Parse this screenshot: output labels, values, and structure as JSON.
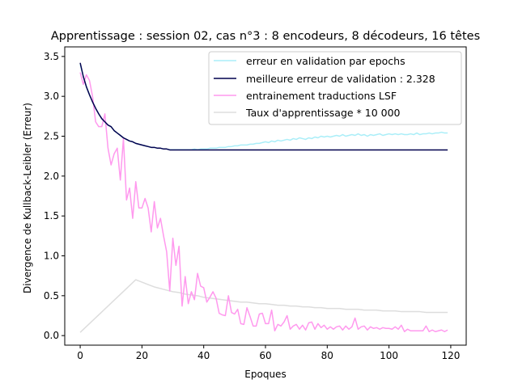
{
  "chart_data": {
    "type": "line",
    "title": "Apprentissage : session 02, cas n°3 : 8 encodeurs, 8 décodeurs, 16 têtes",
    "xlabel": "Epoques",
    "ylabel": "Divergence de Kullback-Leibler (Erreur)",
    "xlim": [
      -5,
      125
    ],
    "ylim": [
      -0.12,
      3.62
    ],
    "xticks": [
      0,
      20,
      40,
      60,
      80,
      100,
      120
    ],
    "yticks": [
      0.0,
      0.5,
      1.0,
      1.5,
      2.0,
      2.5,
      3.0,
      3.5
    ],
    "xtick_labels": [
      "0",
      "20",
      "40",
      "60",
      "80",
      "100",
      "120"
    ],
    "ytick_labels": [
      "0.0",
      "0.5",
      "1.0",
      "1.5",
      "2.0",
      "2.5",
      "3.0",
      "3.5"
    ],
    "legend_position": "top-right",
    "grid": false,
    "series": [
      {
        "name": "erreur en validation par epochs",
        "color": "#aaeef8",
        "x": [
          0,
          1,
          2,
          3,
          4,
          5,
          6,
          7,
          8,
          9,
          10,
          11,
          12,
          13,
          14,
          15,
          16,
          17,
          18,
          19,
          20,
          21,
          22,
          23,
          24,
          25,
          26,
          27,
          28,
          29,
          30,
          31,
          32,
          33,
          34,
          35,
          36,
          37,
          38,
          39,
          40,
          41,
          42,
          43,
          44,
          45,
          46,
          47,
          48,
          49,
          50,
          51,
          52,
          53,
          54,
          55,
          56,
          57,
          58,
          59,
          60,
          61,
          62,
          63,
          64,
          65,
          66,
          67,
          68,
          69,
          70,
          71,
          72,
          73,
          74,
          75,
          76,
          77,
          78,
          79,
          80,
          81,
          82,
          83,
          84,
          85,
          86,
          87,
          88,
          89,
          90,
          91,
          92,
          93,
          94,
          95,
          96,
          97,
          98,
          99,
          100,
          101,
          102,
          103,
          104,
          105,
          106,
          107,
          108,
          109,
          110,
          111,
          112,
          113,
          114,
          115,
          116,
          117,
          118,
          119
        ],
        "values": [
          3.4,
          3.25,
          3.12,
          3.02,
          2.93,
          2.85,
          2.78,
          2.72,
          2.68,
          2.64,
          2.62,
          2.57,
          2.54,
          2.51,
          2.48,
          2.46,
          2.44,
          2.43,
          2.41,
          2.4,
          2.39,
          2.38,
          2.37,
          2.36,
          2.36,
          2.35,
          2.35,
          2.34,
          2.34,
          2.33,
          2.33,
          2.33,
          2.33,
          2.33,
          2.33,
          2.33,
          2.33,
          2.34,
          2.33,
          2.34,
          2.34,
          2.34,
          2.35,
          2.35,
          2.35,
          2.36,
          2.36,
          2.36,
          2.37,
          2.37,
          2.38,
          2.38,
          2.39,
          2.39,
          2.39,
          2.4,
          2.4,
          2.41,
          2.41,
          2.42,
          2.43,
          2.42,
          2.44,
          2.43,
          2.45,
          2.44,
          2.45,
          2.46,
          2.45,
          2.47,
          2.46,
          2.48,
          2.47,
          2.46,
          2.48,
          2.47,
          2.49,
          2.48,
          2.5,
          2.49,
          2.5,
          2.49,
          2.5,
          2.51,
          2.5,
          2.52,
          2.5,
          2.51,
          2.52,
          2.51,
          2.53,
          2.51,
          2.52,
          2.5,
          2.52,
          2.51,
          2.52,
          2.53,
          2.51,
          2.52,
          2.53,
          2.52,
          2.53,
          2.52,
          2.53,
          2.52,
          2.52,
          2.53,
          2.52,
          2.54,
          2.52,
          2.53,
          2.53,
          2.54,
          2.53,
          2.54,
          2.54,
          2.55,
          2.54,
          2.54
        ]
      },
      {
        "name": "meilleure erreur de validation : 2.328",
        "color": "#00004d",
        "x": [
          0,
          1,
          2,
          3,
          4,
          5,
          6,
          7,
          8,
          9,
          10,
          11,
          12,
          13,
          14,
          15,
          16,
          17,
          18,
          19,
          20,
          21,
          22,
          23,
          24,
          25,
          26,
          27,
          28,
          29,
          119
        ],
        "values": [
          3.42,
          3.25,
          3.12,
          3.02,
          2.93,
          2.85,
          2.78,
          2.72,
          2.68,
          2.64,
          2.62,
          2.57,
          2.54,
          2.51,
          2.48,
          2.46,
          2.44,
          2.43,
          2.41,
          2.4,
          2.39,
          2.38,
          2.37,
          2.36,
          2.36,
          2.35,
          2.35,
          2.34,
          2.34,
          2.328,
          2.328
        ]
      },
      {
        "name": "entrainement traductions LSF",
        "color": "#ff99ee",
        "x": [
          0,
          1,
          2,
          3,
          4,
          5,
          6,
          7,
          8,
          9,
          10,
          11,
          12,
          13,
          14,
          15,
          16,
          17,
          18,
          19,
          20,
          21,
          22,
          23,
          24,
          25,
          26,
          27,
          28,
          29,
          30,
          31,
          32,
          33,
          34,
          35,
          36,
          37,
          38,
          39,
          40,
          41,
          42,
          43,
          44,
          45,
          46,
          47,
          48,
          49,
          50,
          51,
          52,
          53,
          54,
          55,
          56,
          57,
          58,
          59,
          60,
          61,
          62,
          63,
          64,
          65,
          66,
          67,
          68,
          69,
          70,
          71,
          72,
          73,
          74,
          75,
          76,
          77,
          78,
          79,
          80,
          81,
          82,
          83,
          84,
          85,
          86,
          87,
          88,
          89,
          90,
          91,
          92,
          93,
          94,
          95,
          96,
          97,
          98,
          99,
          100,
          101,
          102,
          103,
          104,
          105,
          106,
          107,
          108,
          109,
          110,
          111,
          112,
          113,
          114,
          115,
          116,
          117,
          118,
          119
        ],
        "values": [
          3.3,
          3.15,
          3.27,
          3.2,
          3.0,
          2.68,
          2.62,
          2.62,
          2.78,
          2.35,
          2.14,
          2.28,
          2.35,
          1.95,
          2.47,
          1.7,
          1.85,
          1.47,
          1.93,
          1.6,
          1.6,
          1.72,
          1.6,
          1.3,
          1.68,
          1.35,
          1.47,
          1.25,
          1.05,
          0.56,
          1.22,
          0.88,
          1.12,
          0.37,
          0.74,
          0.4,
          0.55,
          0.45,
          0.78,
          0.62,
          0.6,
          0.42,
          0.48,
          0.55,
          0.47,
          0.28,
          0.26,
          0.25,
          0.5,
          0.29,
          0.27,
          0.33,
          0.15,
          0.14,
          0.35,
          0.24,
          0.12,
          0.12,
          0.27,
          0.28,
          0.15,
          0.15,
          0.32,
          0.06,
          0.14,
          0.12,
          0.17,
          0.25,
          0.08,
          0.12,
          0.14,
          0.08,
          0.13,
          0.07,
          0.16,
          0.17,
          0.08,
          0.15,
          0.1,
          0.13,
          0.08,
          0.11,
          0.08,
          0.11,
          0.12,
          0.07,
          0.12,
          0.08,
          0.11,
          0.22,
          0.08,
          0.11,
          0.12,
          0.07,
          0.11,
          0.09,
          0.1,
          0.08,
          0.1,
          0.09,
          0.09,
          0.08,
          0.11,
          0.08,
          0.13,
          0.05,
          0.08,
          0.06,
          0.06,
          0.06,
          0.06,
          0.06,
          0.12,
          0.05,
          0.07,
          0.05,
          0.06,
          0.07,
          0.05,
          0.07
        ]
      },
      {
        "name": "Taux d'apprentissage * 10 000",
        "color": "#dddddd",
        "x": [
          0,
          18,
          20,
          22,
          24,
          26,
          28,
          30,
          32,
          34,
          36,
          38,
          40,
          42,
          44,
          46,
          48,
          50,
          52,
          54,
          56,
          58,
          60,
          62,
          64,
          66,
          68,
          70,
          72,
          74,
          76,
          78,
          80,
          82,
          84,
          86,
          88,
          90,
          92,
          94,
          96,
          98,
          100,
          102,
          104,
          106,
          108,
          110,
          112,
          114,
          116,
          118,
          119
        ],
        "values": [
          0.04,
          0.7,
          0.67,
          0.64,
          0.61,
          0.59,
          0.57,
          0.55,
          0.54,
          0.52,
          0.51,
          0.5,
          0.48,
          0.47,
          0.46,
          0.45,
          0.44,
          0.43,
          0.42,
          0.42,
          0.41,
          0.4,
          0.4,
          0.39,
          0.38,
          0.38,
          0.37,
          0.37,
          0.36,
          0.36,
          0.35,
          0.35,
          0.34,
          0.34,
          0.34,
          0.33,
          0.33,
          0.33,
          0.32,
          0.32,
          0.32,
          0.31,
          0.31,
          0.31,
          0.3,
          0.3,
          0.3,
          0.3,
          0.29,
          0.29,
          0.29,
          0.29,
          0.29
        ]
      }
    ]
  }
}
